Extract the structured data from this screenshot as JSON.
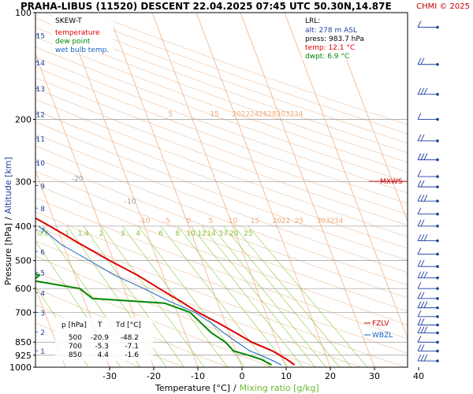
{
  "header": {
    "title": "PRAHA-LIBUS (11520)   DESCENT   22.04.2025 07:45 UTC   50.30N,14.87E",
    "copyright": "CHMI © 2025"
  },
  "colors": {
    "temperature": "#dd0000",
    "dewpoint": "#008800",
    "wetbulb": "#1560c0",
    "isotherm": "#f0a878",
    "mixing": "#a0d060",
    "dry_adiabat": "#f0c8a8",
    "pressure_grid": "#999999",
    "frame": "#000000"
  },
  "legend": {
    "type": "SKEW-T",
    "temperature": "temperature",
    "dewpoint": "dew point",
    "wetbulb": "wet bulb temp."
  },
  "lrl": {
    "title": "LRL:",
    "alt": "alt: 278 m ASL",
    "press": "press: 983.7 hPa",
    "temp": "temp: 12.1 °C",
    "dwpt": "dwpt: 6.9 °C"
  },
  "table": {
    "headers": [
      "p [hPa]",
      "T",
      "Td [°C]"
    ],
    "rows": [
      [
        "500",
        "-20.9",
        "-48.2"
      ],
      [
        "700",
        "-5.3",
        "-7.1"
      ],
      [
        "850",
        "4.4",
        "-1.6"
      ]
    ]
  },
  "markers": {
    "mxws": "MXWS",
    "fzlv": "FZLV",
    "wbzl": "WBZL"
  },
  "axes": {
    "xlabel_temp": "Temperature [°C]",
    "xlabel_sep": "/",
    "xlabel_mix": "Mixing ratio [g/kg]",
    "ylabel_p": "Pressure [hPa]",
    "ylabel_sep": "/",
    "ylabel_alt": "Altitude [km]"
  },
  "chart_data": {
    "type": "line",
    "diagram": "skew-t log-p",
    "x_ticks": [
      -30,
      -20,
      -10,
      0,
      10,
      20,
      30,
      40
    ],
    "p_ticks": [
      100,
      200,
      300,
      400,
      500,
      600,
      700,
      850,
      925,
      1000
    ],
    "altitude_ticks": [
      1,
      2,
      3,
      4,
      5,
      6,
      7,
      8,
      9,
      10,
      11,
      12,
      13,
      14,
      15,
      16
    ],
    "isotherm_labels": [
      -80,
      -70,
      -60,
      -50,
      -40,
      -30,
      -20,
      -10
    ],
    "isotherm_labels_row_400": [
      -10,
      -5,
      0,
      5,
      10,
      15,
      20,
      22,
      25,
      30,
      32,
      34
    ],
    "isotherm_labels_row_200": [
      5,
      15,
      20,
      22,
      24,
      26,
      28,
      30,
      32,
      34
    ],
    "mixing_ratio_labels": [
      "0.2",
      "0.4",
      "0.6",
      "1",
      "1.4",
      "2",
      "3",
      "4",
      "6",
      "8",
      "10",
      "12",
      "14",
      "17",
      "20",
      "25"
    ],
    "series": [
      {
        "name": "temperature",
        "points": [
          [
            985,
            12.1
          ],
          [
            950,
            10.8
          ],
          [
            925,
            9.6
          ],
          [
            900,
            8.3
          ],
          [
            850,
            4.4
          ],
          [
            800,
            1.5
          ],
          [
            750,
            -1.6
          ],
          [
            700,
            -5.3
          ],
          [
            650,
            -8.4
          ],
          [
            600,
            -12.0
          ],
          [
            550,
            -15.8
          ],
          [
            500,
            -20.9
          ],
          [
            450,
            -26.0
          ],
          [
            400,
            -31.5
          ],
          [
            350,
            -38.0
          ],
          [
            300,
            -45.5
          ],
          [
            270,
            -50.5
          ],
          [
            250,
            -52.5
          ],
          [
            230,
            -54.0
          ],
          [
            210,
            -55.5
          ],
          [
            200,
            -55.8
          ],
          [
            180,
            -56.0
          ],
          [
            170,
            -55.5
          ],
          [
            150,
            -56.5
          ],
          [
            130,
            -58.0
          ],
          [
            120,
            -57.5
          ],
          [
            110,
            -58.5
          ],
          [
            100,
            -59.5
          ]
        ]
      },
      {
        "name": "dew point",
        "points": [
          [
            985,
            6.9
          ],
          [
            950,
            5.0
          ],
          [
            925,
            2.5
          ],
          [
            900,
            -0.5
          ],
          [
            850,
            -1.6
          ],
          [
            800,
            -4.0
          ],
          [
            750,
            -5.5
          ],
          [
            700,
            -7.1
          ],
          [
            660,
            -12.0
          ],
          [
            640,
            -28.0
          ],
          [
            600,
            -30.0
          ],
          [
            570,
            -40.0
          ],
          [
            550,
            -38.0
          ],
          [
            500,
            -48.2
          ],
          [
            480,
            -47.0
          ],
          [
            450,
            -50.0
          ],
          [
            420,
            -52.0
          ],
          [
            400,
            -56.0
          ],
          [
            390,
            -59.0
          ],
          [
            370,
            -47.0
          ],
          [
            350,
            -52.0
          ],
          [
            320,
            -54.0
          ],
          [
            300,
            -57.0
          ],
          [
            270,
            -63.0
          ],
          [
            250,
            -64.0
          ],
          [
            230,
            -68.0
          ],
          [
            210,
            -74.0
          ],
          [
            200,
            -76.0
          ],
          [
            190,
            -81.0
          ],
          [
            170,
            -85.0
          ],
          [
            150,
            -88.0
          ],
          [
            130,
            -89.0
          ],
          [
            115,
            -86.0
          ],
          [
            100,
            -83.0
          ]
        ]
      },
      {
        "name": "wet bulb temp.",
        "points": [
          [
            985,
            9.1
          ],
          [
            950,
            7.0
          ],
          [
            925,
            5.3
          ],
          [
            900,
            3.2
          ],
          [
            850,
            1.0
          ],
          [
            800,
            -1.2
          ],
          [
            750,
            -3.2
          ],
          [
            700,
            -6.0
          ],
          [
            650,
            -11.0
          ],
          [
            600,
            -15.5
          ],
          [
            550,
            -21.0
          ],
          [
            500,
            -25.5
          ],
          [
            450,
            -30.5
          ],
          [
            400,
            -34.0
          ]
        ]
      }
    ],
    "special_levels": [
      {
        "name": "MXWS",
        "p": 300
      },
      {
        "name": "FZLV",
        "p": 775
      },
      {
        "name": "WBZL",
        "p": 815
      }
    ],
    "wind_levels_hpa": [
      110,
      140,
      170,
      200,
      230,
      260,
      290,
      310,
      340,
      370,
      400,
      440,
      480,
      520,
      560,
      600,
      640,
      680,
      720,
      760,
      800,
      850,
      900,
      960
    ]
  }
}
